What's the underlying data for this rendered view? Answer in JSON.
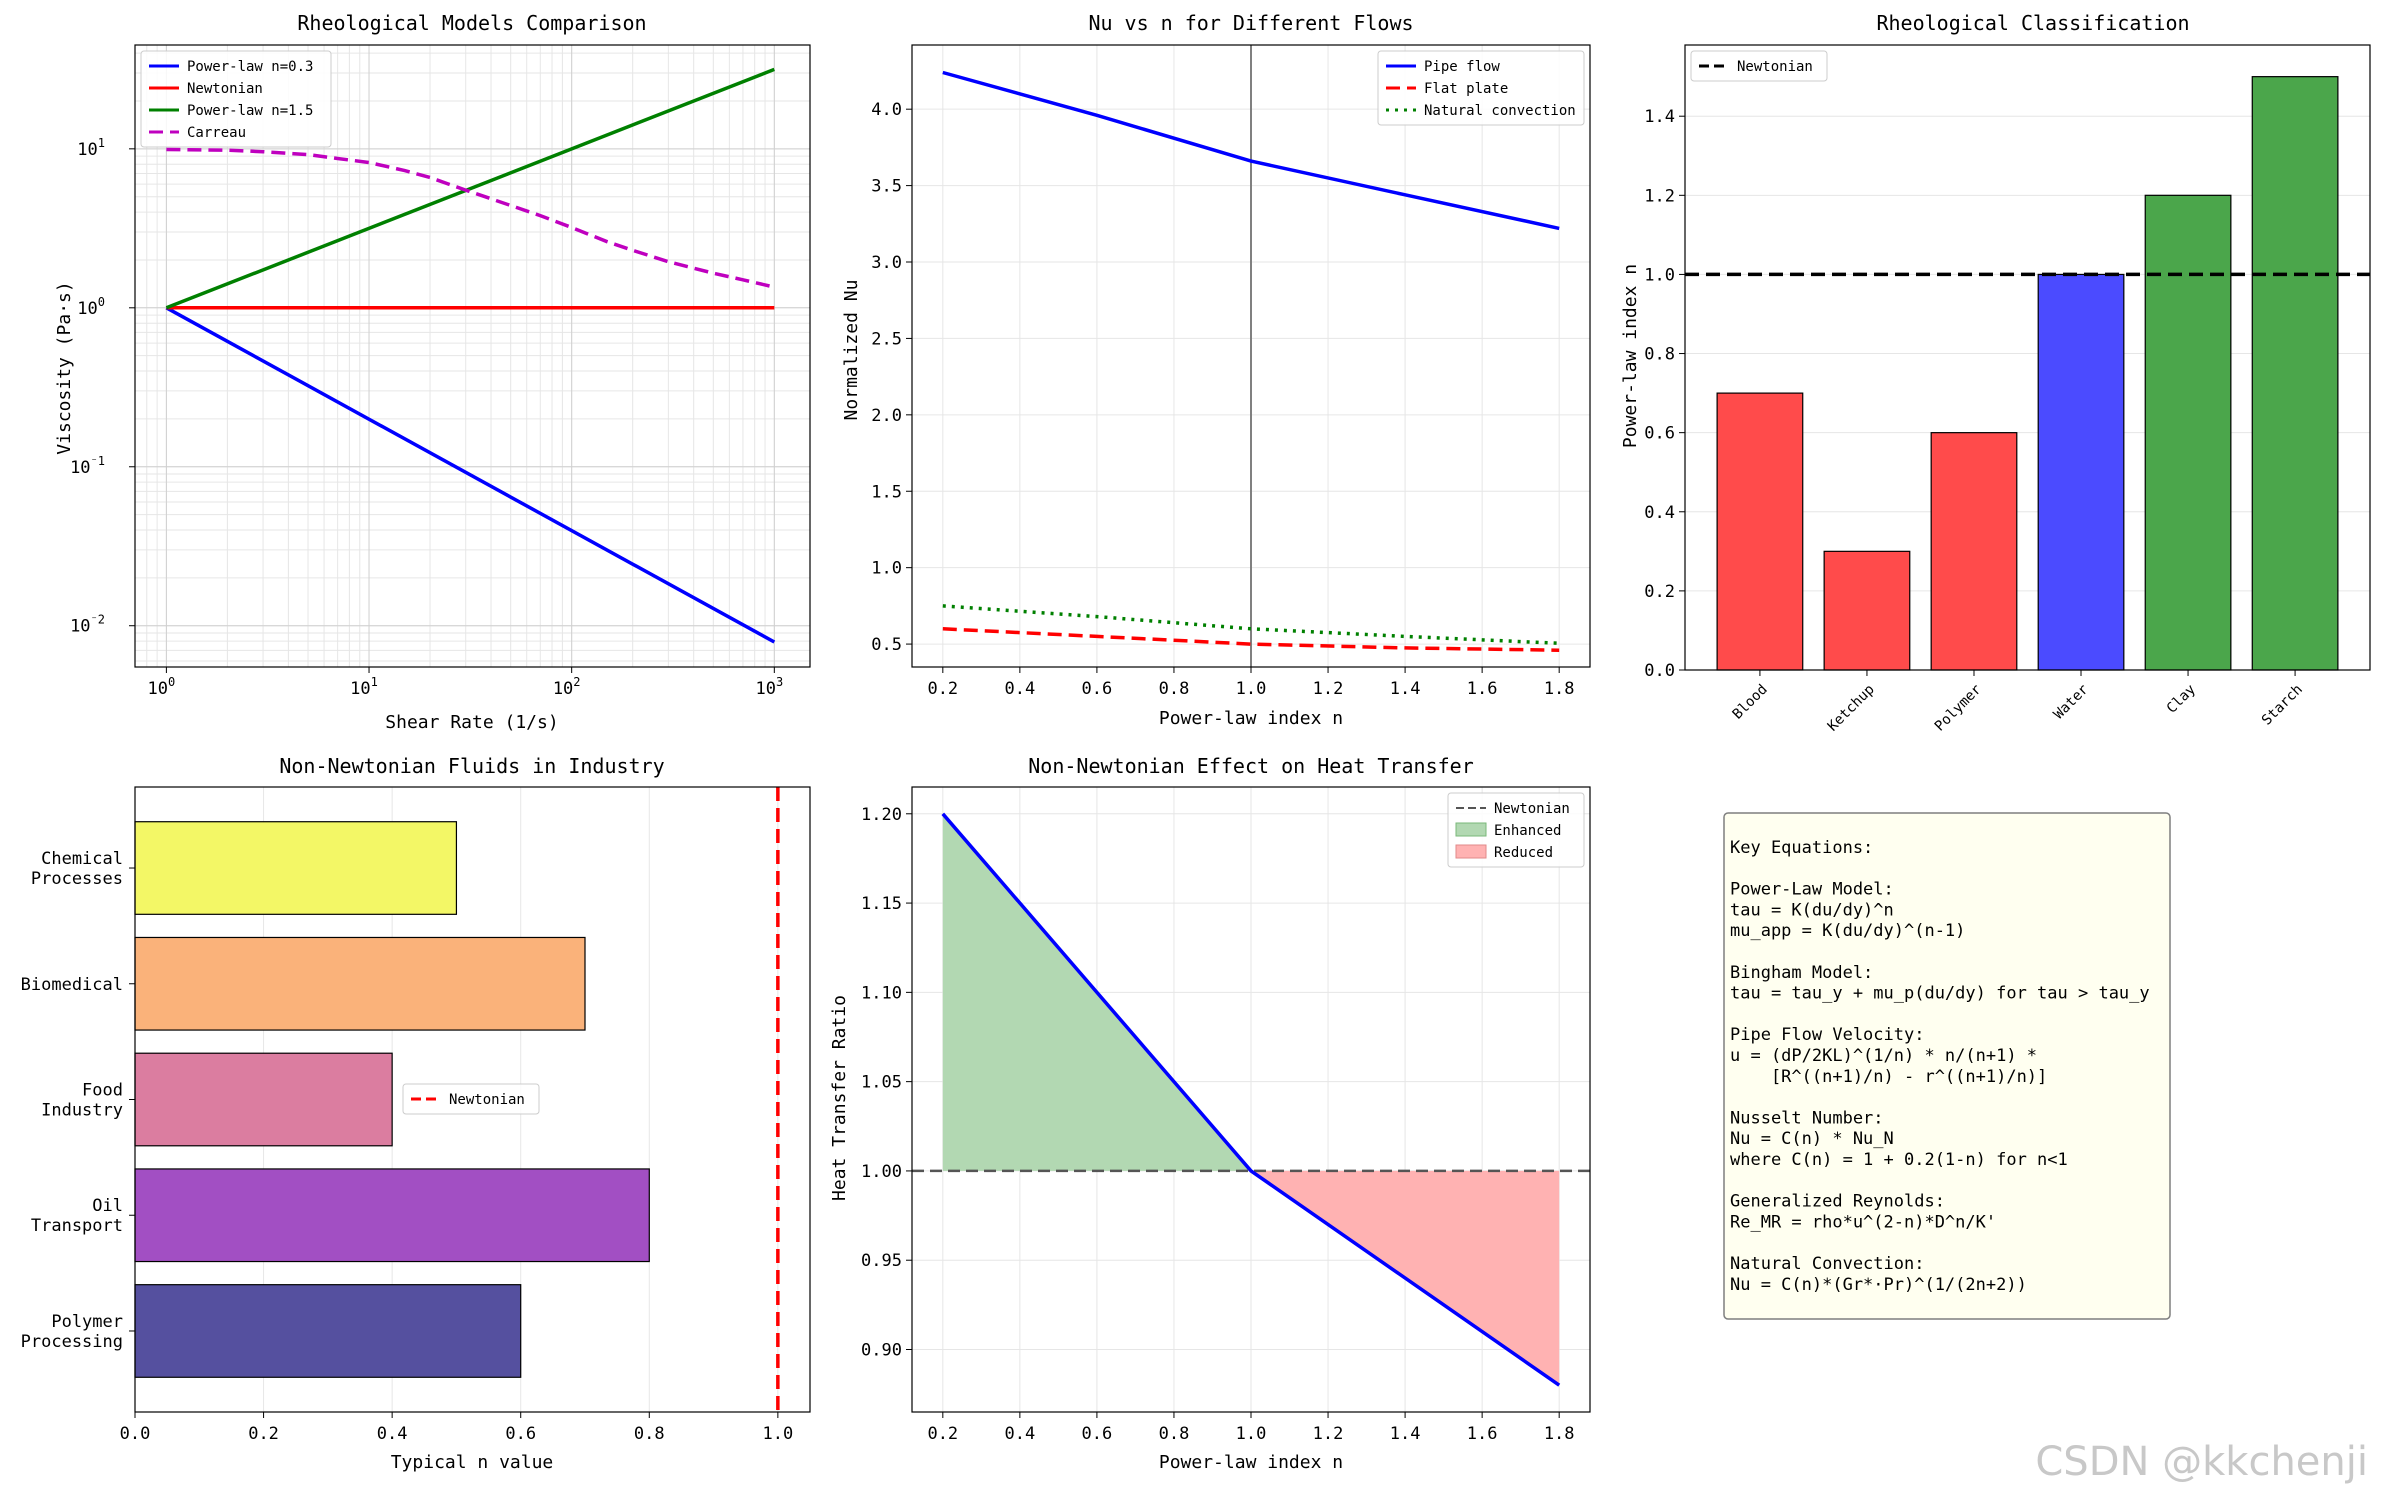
{
  "colors": {
    "blue": "#0000ff",
    "red": "#ff0000",
    "green": "#008000",
    "magenta": "#bf00bf",
    "gray": "#808080"
  },
  "watermark": "CSDN @kkchenji",
  "chart_data": [
    {
      "type": "line",
      "title": "Rheological Models Comparison",
      "xlabel": "Shear Rate (1/s)",
      "ylabel": "Viscosity (Pa·s)",
      "xscale": "log",
      "yscale": "log",
      "xlim": [
        0.7,
        1500
      ],
      "ylim": [
        0.0055,
        45
      ],
      "xticks": [
        {
          "v": 1,
          "base": "10",
          "exp": "0"
        },
        {
          "v": 10,
          "base": "10",
          "exp": "1"
        },
        {
          "v": 100,
          "base": "10",
          "exp": "2"
        },
        {
          "v": 1000,
          "base": "10",
          "exp": "3"
        }
      ],
      "yticks": [
        {
          "v": 10,
          "base": "10",
          "exp": "1"
        },
        {
          "v": 1,
          "base": "10",
          "exp": "0"
        },
        {
          "v": 0.1,
          "base": "10",
          "exp": "⁻1"
        },
        {
          "v": 0.01,
          "base": "10",
          "exp": "⁻2"
        }
      ],
      "grid": true,
      "legend_position": "upper-left",
      "series": [
        {
          "name": "Power-law n=0.3",
          "color": "#0000ff",
          "dash": "solid",
          "x": [
            1,
            1000
          ],
          "y": [
            1,
            0.0079
          ]
        },
        {
          "name": "Newtonian",
          "color": "#ff0000",
          "dash": "solid",
          "x": [
            1,
            1000
          ],
          "y": [
            1,
            1
          ]
        },
        {
          "name": "Power-law n=1.5",
          "color": "#008000",
          "dash": "solid",
          "x": [
            1,
            1000
          ],
          "y": [
            1,
            31.6
          ]
        },
        {
          "name": "Carreau",
          "color": "#bf00bf",
          "dash": "dashed",
          "x": [
            1,
            2,
            3,
            5,
            7,
            10,
            15,
            20,
            30,
            50,
            70,
            100,
            150,
            200,
            300,
            500,
            700,
            1000
          ],
          "y": [
            9.9,
            9.8,
            9.6,
            9.2,
            8.7,
            8.2,
            7.3,
            6.6,
            5.5,
            4.4,
            3.8,
            3.2,
            2.6,
            2.3,
            1.95,
            1.65,
            1.5,
            1.35
          ]
        }
      ]
    },
    {
      "type": "line",
      "title": "Nu vs n for Different Flows",
      "xlabel": "Power-law index n",
      "ylabel": "Normalized Nu",
      "xlim": [
        0.12,
        1.88
      ],
      "ylim": [
        0.35,
        4.42
      ],
      "xticks": [
        "0.2",
        "0.4",
        "0.6",
        "0.8",
        "1.0",
        "1.2",
        "1.4",
        "1.6",
        "1.8"
      ],
      "yticks": [
        "0.5",
        "1.0",
        "1.5",
        "2.0",
        "2.5",
        "3.0",
        "3.5",
        "4.0"
      ],
      "grid": true,
      "vline": 1.0,
      "legend_position": "upper-right",
      "series": [
        {
          "name": "Pipe flow",
          "color": "#0000ff",
          "dash": "solid",
          "x": [
            0.2,
            0.6,
            1.0,
            1.4,
            1.8
          ],
          "y": [
            4.24,
            3.96,
            3.66,
            3.44,
            3.22
          ]
        },
        {
          "name": "Flat plate",
          "color": "#ff0000",
          "dash": "dashed",
          "x": [
            0.2,
            0.6,
            1.0,
            1.4,
            1.8
          ],
          "y": [
            0.6,
            0.55,
            0.5,
            0.475,
            0.46
          ]
        },
        {
          "name": "Natural convection",
          "color": "#008000",
          "dash": "dotted",
          "x": [
            0.2,
            0.6,
            1.0,
            1.4,
            1.8
          ],
          "y": [
            0.75,
            0.68,
            0.6,
            0.55,
            0.505
          ]
        }
      ]
    },
    {
      "type": "bar",
      "title": "Rheological Classification",
      "ylabel": "Power-law index n",
      "ylim": [
        0,
        1.58
      ],
      "yticks": [
        "0.0",
        "0.2",
        "0.4",
        "0.6",
        "0.8",
        "1.0",
        "1.2",
        "1.4"
      ],
      "categories": [
        "Blood",
        "Ketchup",
        "Polymer",
        "Water",
        "Clay",
        "Starch"
      ],
      "values": [
        0.7,
        0.3,
        0.6,
        1.0,
        1.2,
        1.5
      ],
      "bar_colors": [
        "#ff4b4b",
        "#ff4b4b",
        "#ff4b4b",
        "#4b4bff",
        "#4ba64b",
        "#4ba64b"
      ],
      "hline": {
        "y": 1.0,
        "name": "Newtonian"
      },
      "legend_position": "upper-left"
    },
    {
      "type": "barh",
      "title": "Non-Newtonian Fluids in Industry",
      "xlabel": "Typical n value",
      "xlim": [
        0,
        1.05
      ],
      "xticks": [
        "0.0",
        "0.2",
        "0.4",
        "0.6",
        "0.8",
        "1.0"
      ],
      "categories": [
        [
          "Polymer",
          "Processing"
        ],
        [
          "Oil",
          "Transport"
        ],
        [
          "Food",
          "Industry"
        ],
        [
          "Biomedical"
        ],
        [
          "Chemical",
          "Processes"
        ]
      ],
      "values": [
        0.6,
        0.8,
        0.4,
        0.7,
        0.5
      ],
      "bar_colors": [
        "#55509f",
        "#a24fc3",
        "#db7da0",
        "#fab27a",
        "#f3f766"
      ],
      "vline": {
        "x": 1.0,
        "name": "Newtonian"
      },
      "legend_position": "center"
    },
    {
      "type": "line",
      "title": "Non-Newtonian Effect on Heat Transfer",
      "xlabel": "Power-law index n",
      "ylabel": "Heat Transfer Ratio",
      "xlim": [
        0.12,
        1.88
      ],
      "ylim": [
        0.865,
        1.215
      ],
      "xticks": [
        "0.2",
        "0.4",
        "0.6",
        "0.8",
        "1.0",
        "1.2",
        "1.4",
        "1.6",
        "1.8"
      ],
      "yticks": [
        "0.90",
        "0.95",
        "1.00",
        "1.05",
        "1.10",
        "1.15",
        "1.20"
      ],
      "grid": true,
      "legend_position": "upper-right",
      "series": [
        {
          "name": "",
          "color": "#0000ff",
          "dash": "solid",
          "x": [
            0.2,
            1.0,
            1.8
          ],
          "y": [
            1.2,
            1.0,
            0.88
          ]
        }
      ],
      "reference": {
        "name": "Newtonian",
        "y": 1.0
      },
      "fills": [
        {
          "name": "Enhanced",
          "color": "#b2d8b2",
          "x": [
            0.2,
            1.0
          ]
        },
        {
          "name": "Reduced",
          "color": "#ffb2b2",
          "x": [
            1.0,
            1.8
          ]
        }
      ]
    }
  ],
  "equations": {
    "lines": [
      "Key Equations:",
      "",
      "Power-Law Model:",
      "tau = K(du/dy)^n",
      "mu_app = K(du/dy)^(n-1)",
      "",
      "Bingham Model:",
      "tau = tau_y + mu_p(du/dy) for tau > tau_y",
      "",
      "Pipe Flow Velocity:",
      "u = (dP/2KL)^(1/n) * n/(n+1) *",
      "    [R^((n+1)/n) - r^((n+1)/n)]",
      "",
      "Nusselt Number:",
      "Nu = C(n) * Nu_N",
      "where C(n) = 1 + 0.2(1-n) for n<1",
      "",
      "Generalized Reynolds:",
      "Re_MR = rho*u^(2-n)*D^n/K'",
      "",
      "Natural Convection:",
      "Nu = C(n)*(Gr*·Pr)^(1/(2n+2))"
    ]
  }
}
